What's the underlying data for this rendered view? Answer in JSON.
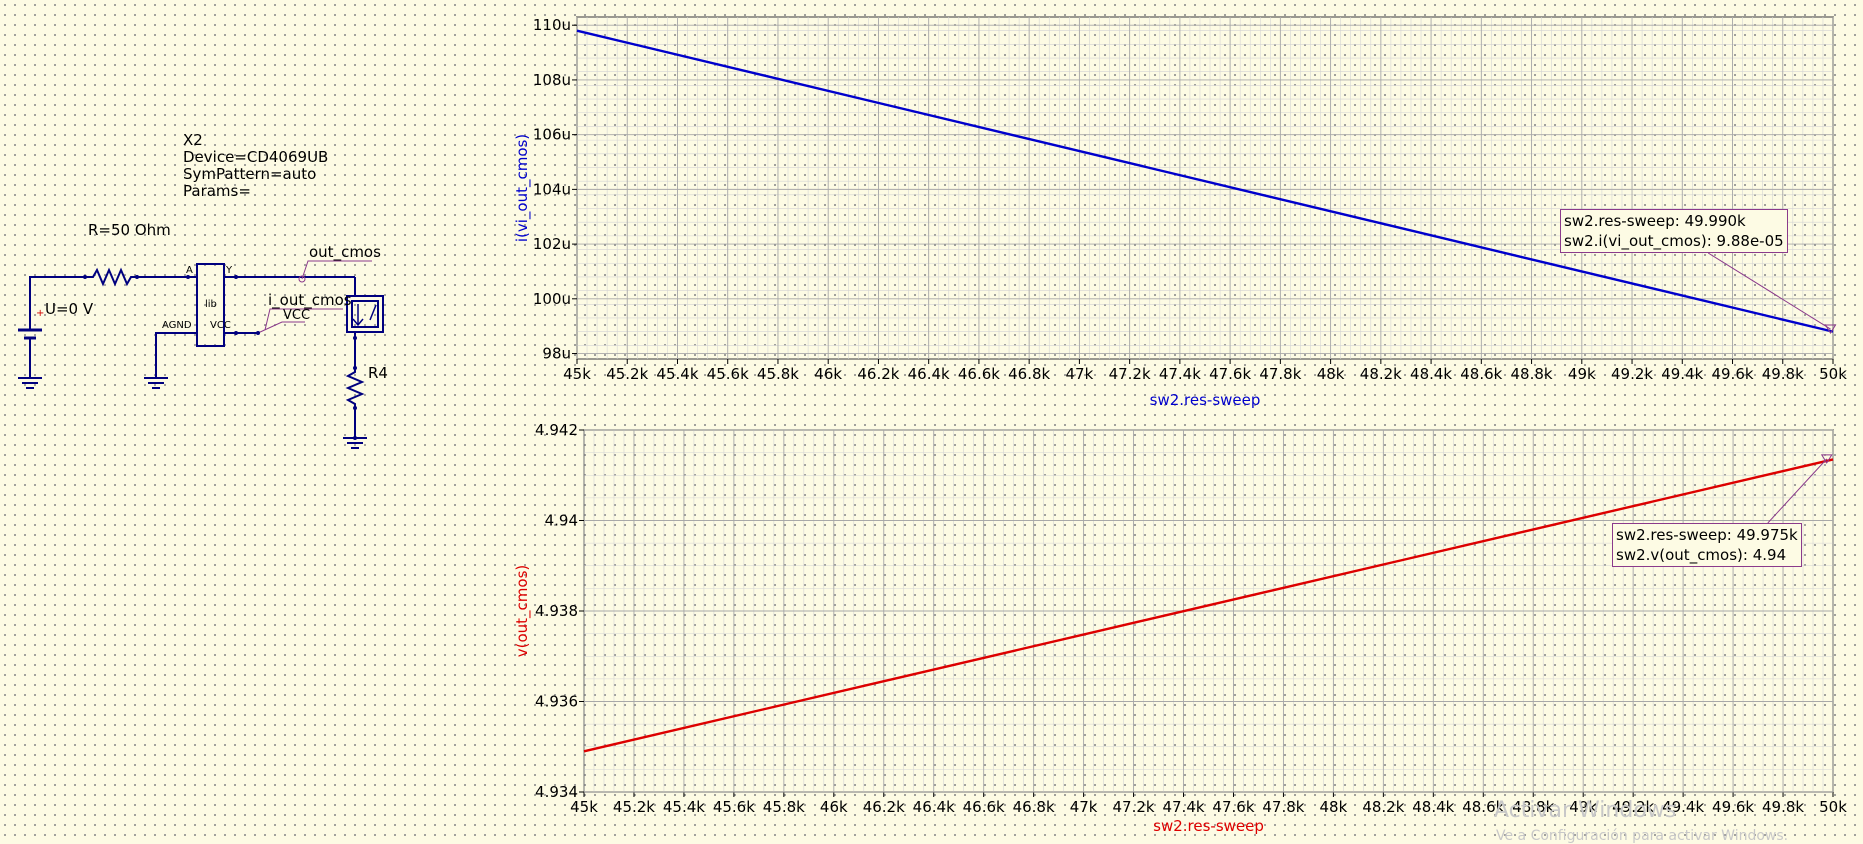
{
  "schematic": {
    "x2_label": "X2",
    "device": "Device=CD4069UB",
    "sympattern": "SymPattern=auto",
    "params": "Params=",
    "resistor": "R=50 Ohm",
    "source": "U=0 V",
    "pin_a": "A",
    "pin_y": "Y",
    "pin_lib": "lib",
    "pin_agnd": "AGND",
    "pin_vcc": "VCC",
    "net_out": "out_cmos",
    "net_iout": "i_out_cmos",
    "net_vcc": "VCC",
    "r4": "R4"
  },
  "chart_data": [
    {
      "type": "line",
      "xlabel": "sw2.res-sweep",
      "ylabel": "i(vi_out_cmos)",
      "color": "#0000cc",
      "xlim": [
        45000,
        50000
      ],
      "ylim": [
        97.8,
        110.3
      ],
      "x_ticks": [
        "45k",
        "45.2k",
        "45.4k",
        "45.6k",
        "45.8k",
        "46k",
        "46.2k",
        "46.4k",
        "46.6k",
        "46.8k",
        "47k",
        "47.2k",
        "47.4k",
        "47.6k",
        "47.8k",
        "48k",
        "48.2k",
        "48.4k",
        "48.6k",
        "48.8k",
        "49k",
        "49.2k",
        "49.4k",
        "49.6k",
        "49.8k",
        "50k"
      ],
      "y_ticks": [
        {
          "v": 98,
          "label": "98u"
        },
        {
          "v": 100,
          "label": "100u"
        },
        {
          "v": 102,
          "label": "102u"
        },
        {
          "v": 104,
          "label": "104u"
        },
        {
          "v": 106,
          "label": "106u"
        },
        {
          "v": 108,
          "label": "108u"
        },
        {
          "v": 110,
          "label": "110u"
        }
      ],
      "x": [
        45000,
        50000
      ],
      "y": [
        109.8,
        98.8
      ],
      "marker": {
        "x": 49990,
        "line1": "sw2.res-sweep: 49.990k",
        "line2": "sw2.i(vi_out_cmos): 9.88e-05"
      }
    },
    {
      "type": "line",
      "xlabel": "sw2.res-sweep",
      "ylabel": "v(out_cmos)",
      "color": "#dd0000",
      "xlim": [
        45000,
        50000
      ],
      "ylim": [
        4.934,
        4.942
      ],
      "x_ticks": [
        "45k",
        "45.2k",
        "45.4k",
        "45.6k",
        "45.8k",
        "46k",
        "46.2k",
        "46.4k",
        "46.6k",
        "46.8k",
        "47k",
        "47.2k",
        "47.4k",
        "47.6k",
        "47.8k",
        "48k",
        "48.2k",
        "48.4k",
        "48.6k",
        "48.8k",
        "49k",
        "49.2k",
        "49.4k",
        "49.6k",
        "49.8k",
        "50k"
      ],
      "y_ticks": [
        {
          "v": 4.934,
          "label": "4.934"
        },
        {
          "v": 4.936,
          "label": "4.936"
        },
        {
          "v": 4.938,
          "label": "4.938"
        },
        {
          "v": 4.94,
          "label": "4.94"
        },
        {
          "v": 4.942,
          "label": "4.942"
        }
      ],
      "x": [
        45000,
        50000
      ],
      "y": [
        4.9349,
        4.94135
      ],
      "marker": {
        "x": 49975,
        "line1": "sw2.res-sweep: 49.975k",
        "line2": "sw2.v(out_cmos): 4.94"
      }
    }
  ],
  "watermark": {
    "line1": "Activar Windows",
    "line2": "Ve a Configuración para activar Windows."
  }
}
